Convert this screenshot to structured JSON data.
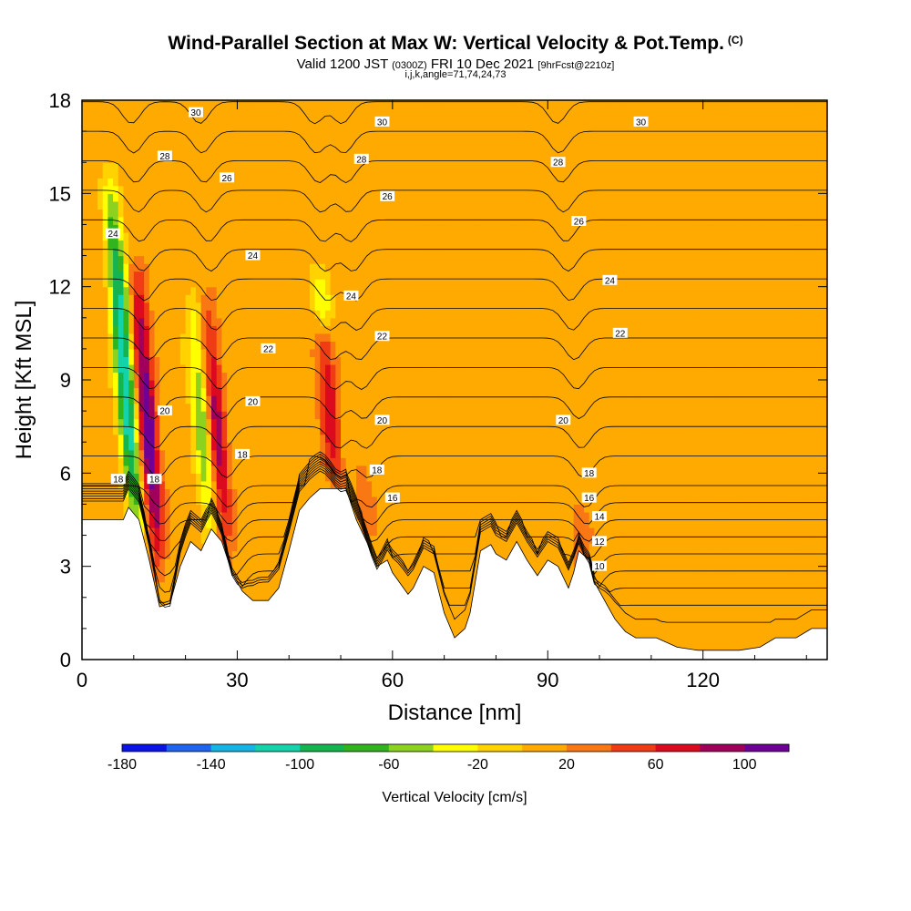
{
  "title": "Wind-Parallel Section at Max W: Vertical Velocity & Pot.Temp.",
  "title_mark": "(C)",
  "subtitle_valid": "Valid 1200 JST",
  "subtitle_utc": "(0300Z)",
  "subtitle_date": "FRI 10 Dec 2021",
  "subtitle_fcst": "[9hrFcst@2210z]",
  "subtitle_indices": "i,j,k,angle=71,74,24,73",
  "chart_data": {
    "type": "contour-section",
    "xlabel": "Distance [nm]",
    "ylabel": "Height [Kft MSL]",
    "xlim": [
      0,
      144
    ],
    "ylim": [
      0,
      18
    ],
    "x_ticks": [
      0,
      30,
      60,
      90,
      120
    ],
    "y_ticks": [
      0,
      3,
      6,
      9,
      12,
      15,
      18
    ],
    "colorbar": {
      "label": "Vertical Velocity [cm/s]",
      "levels": [
        -180,
        -160,
        -140,
        -120,
        -100,
        -80,
        -60,
        -40,
        -20,
        0,
        20,
        40,
        60,
        80,
        100,
        120
      ],
      "tick_labels": [
        "-180",
        "-140",
        "-100",
        "-60",
        "-20",
        "20",
        "60",
        "100"
      ],
      "colors": [
        "#0a14e6",
        "#1e64f0",
        "#14b4e6",
        "#14d2aa",
        "#14b450",
        "#32b41e",
        "#8cd21e",
        "#ffff00",
        "#ffd200",
        "#ffaa00",
        "#fa7814",
        "#f03c14",
        "#dc0a1e",
        "#a0005a",
        "#6e0096"
      ]
    },
    "background_w": 10,
    "updrafts": [
      {
        "x": 15,
        "zmin": 2.5,
        "zmax": 13,
        "peak": 110
      },
      {
        "x": 28,
        "zmin": 3,
        "zmax": 12,
        "peak": 80
      },
      {
        "x": 49,
        "zmin": 5.5,
        "zmax": 11,
        "peak": 70
      },
      {
        "x": 55,
        "zmin": 4,
        "zmax": 6,
        "peak": 30
      },
      {
        "x": 97,
        "zmin": 3,
        "zmax": 5,
        "peak": 30
      }
    ],
    "downdrafts": [
      {
        "x": 11,
        "zmin": 3,
        "zmax": 16,
        "peak": -130
      },
      {
        "x": 25,
        "zmin": 3.5,
        "zmax": 12,
        "peak": -70
      },
      {
        "x": 47,
        "zmin": 10.5,
        "zmax": 12.5,
        "peak": -50
      }
    ],
    "terrain_kft": [
      [
        0,
        4.5
      ],
      [
        8,
        4.5
      ],
      [
        9,
        4.9
      ],
      [
        11,
        4.5
      ],
      [
        13,
        3.2
      ],
      [
        15,
        1.7
      ],
      [
        17,
        1.8
      ],
      [
        19,
        3
      ],
      [
        21,
        3.8
      ],
      [
        23,
        3.5
      ],
      [
        25,
        4.2
      ],
      [
        27,
        3.8
      ],
      [
        29,
        2.8
      ],
      [
        31,
        2.2
      ],
      [
        33,
        1.9
      ],
      [
        36,
        1.9
      ],
      [
        38,
        2.3
      ],
      [
        40,
        3.5
      ],
      [
        42,
        4.8
      ],
      [
        44,
        5.2
      ],
      [
        46,
        5.5
      ],
      [
        51,
        5.5
      ],
      [
        53,
        4.5
      ],
      [
        55,
        3.8
      ],
      [
        57,
        3
      ],
      [
        59,
        3.2
      ],
      [
        60,
        2.8
      ],
      [
        63,
        2.1
      ],
      [
        64,
        2.3
      ],
      [
        66,
        3
      ],
      [
        68,
        2.8
      ],
      [
        70,
        1.5
      ],
      [
        72,
        0.7
      ],
      [
        74,
        1
      ],
      [
        75,
        1.5
      ],
      [
        77,
        3.5
      ],
      [
        79,
        3.7
      ],
      [
        80,
        3.4
      ],
      [
        82,
        3.2
      ],
      [
        84,
        3.8
      ],
      [
        86,
        3.2
      ],
      [
        88,
        2.7
      ],
      [
        90,
        3.2
      ],
      [
        92,
        3
      ],
      [
        94,
        2.3
      ],
      [
        95,
        2.8
      ],
      [
        96,
        3.5
      ],
      [
        98,
        3.2
      ],
      [
        99,
        2.5
      ],
      [
        101,
        1.9
      ],
      [
        103,
        1.3
      ],
      [
        105,
        0.9
      ],
      [
        107,
        0.7
      ],
      [
        111,
        0.7
      ],
      [
        115,
        0.4
      ],
      [
        119,
        0.3
      ],
      [
        123,
        0.3
      ],
      [
        127,
        0.3
      ],
      [
        131,
        0.4
      ],
      [
        134,
        0.7
      ],
      [
        138,
        0.7
      ],
      [
        141,
        1
      ],
      [
        144,
        1
      ]
    ],
    "theta_labels": [
      {
        "x": 22,
        "z": 17.6,
        "text": "30"
      },
      {
        "x": 58,
        "z": 17.3,
        "text": "30"
      },
      {
        "x": 108,
        "z": 17.3,
        "text": "30"
      },
      {
        "x": 16,
        "z": 16.2,
        "text": "28"
      },
      {
        "x": 54,
        "z": 16.1,
        "text": "28"
      },
      {
        "x": 92,
        "z": 16.0,
        "text": "28"
      },
      {
        "x": 28,
        "z": 15.5,
        "text": "26"
      },
      {
        "x": 59,
        "z": 14.9,
        "text": "26"
      },
      {
        "x": 96,
        "z": 14.1,
        "text": "26"
      },
      {
        "x": 6,
        "z": 13.7,
        "text": "24"
      },
      {
        "x": 33,
        "z": 13.0,
        "text": "24"
      },
      {
        "x": 52,
        "z": 11.7,
        "text": "24"
      },
      {
        "x": 102,
        "z": 12.2,
        "text": "24"
      },
      {
        "x": 36,
        "z": 10.0,
        "text": "22"
      },
      {
        "x": 58,
        "z": 10.4,
        "text": "22"
      },
      {
        "x": 104,
        "z": 10.5,
        "text": "22"
      },
      {
        "x": 16,
        "z": 8.0,
        "text": "20"
      },
      {
        "x": 33,
        "z": 8.3,
        "text": "20"
      },
      {
        "x": 58,
        "z": 7.7,
        "text": "20"
      },
      {
        "x": 93,
        "z": 7.7,
        "text": "20"
      },
      {
        "x": 7,
        "z": 5.8,
        "text": "18"
      },
      {
        "x": 14,
        "z": 5.8,
        "text": "18"
      },
      {
        "x": 31,
        "z": 6.6,
        "text": "18"
      },
      {
        "x": 57,
        "z": 6.1,
        "text": "18"
      },
      {
        "x": 98,
        "z": 6.0,
        "text": "18"
      },
      {
        "x": 60,
        "z": 5.2,
        "text": "16"
      },
      {
        "x": 98,
        "z": 5.2,
        "text": "16"
      },
      {
        "x": 100,
        "z": 4.6,
        "text": "14"
      },
      {
        "x": 100,
        "z": 3.8,
        "text": "12"
      },
      {
        "x": 100,
        "z": 3.0,
        "text": "10"
      }
    ]
  }
}
